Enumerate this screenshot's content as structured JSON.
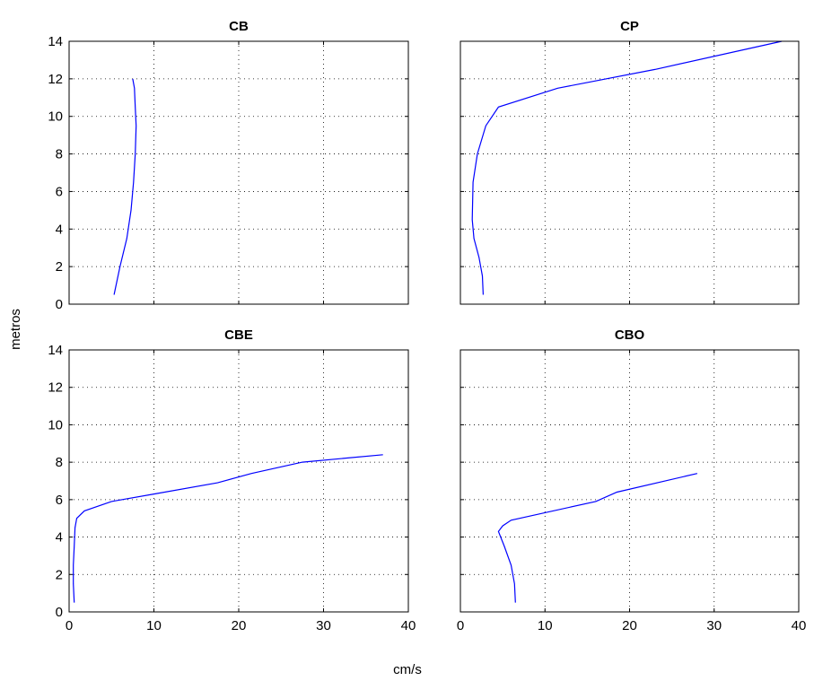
{
  "figure": {
    "xlabel": "cm/s",
    "ylabel": "metros"
  },
  "chart_data": [
    {
      "type": "line",
      "title": "CB",
      "xlim": [
        0,
        40
      ],
      "ylim": [
        0,
        14
      ],
      "xticks": [
        0,
        10,
        20,
        30,
        40
      ],
      "yticks": [
        0,
        2,
        4,
        6,
        8,
        10,
        12,
        14
      ],
      "show_xtick_labels": false,
      "show_ytick_labels": true,
      "grid": true,
      "line_color": "#0000ff",
      "series": [
        {
          "x": [
            5.3,
            6.0,
            6.8,
            7.3,
            7.6,
            7.8,
            7.9,
            7.8,
            7.7,
            7.5
          ],
          "y": [
            0.5,
            2.0,
            3.5,
            5.0,
            6.5,
            8.0,
            9.5,
            10.5,
            11.5,
            12.0
          ]
        }
      ]
    },
    {
      "type": "line",
      "title": "CP",
      "xlim": [
        0,
        40
      ],
      "ylim": [
        0,
        14
      ],
      "xticks": [
        0,
        10,
        20,
        30,
        40
      ],
      "yticks": [
        0,
        2,
        4,
        6,
        8,
        10,
        12,
        14
      ],
      "show_xtick_labels": false,
      "show_ytick_labels": false,
      "grid": true,
      "line_color": "#0000ff",
      "series": [
        {
          "x": [
            2.7,
            2.6,
            2.2,
            1.6,
            1.4,
            1.5,
            2.0,
            3.0,
            4.5,
            11.5,
            23.0,
            38.0
          ],
          "y": [
            0.5,
            1.5,
            2.5,
            3.5,
            4.5,
            6.5,
            8.0,
            9.5,
            10.5,
            11.5,
            12.5,
            14.0
          ]
        }
      ]
    },
    {
      "type": "line",
      "title": "CBE",
      "xlim": [
        0,
        40
      ],
      "ylim": [
        0,
        14
      ],
      "xticks": [
        0,
        10,
        20,
        30,
        40
      ],
      "yticks": [
        0,
        2,
        4,
        6,
        8,
        10,
        12,
        14
      ],
      "show_xtick_labels": true,
      "show_ytick_labels": true,
      "grid": true,
      "line_color": "#0000ff",
      "series": [
        {
          "x": [
            0.6,
            0.5,
            0.5,
            0.6,
            0.7,
            0.9,
            1.8,
            5.0,
            10.0,
            17.5,
            21.5,
            27.5,
            37.0
          ],
          "y": [
            0.5,
            1.5,
            2.5,
            3.5,
            4.5,
            5.0,
            5.4,
            5.9,
            6.3,
            6.9,
            7.4,
            8.0,
            8.4
          ]
        }
      ]
    },
    {
      "type": "line",
      "title": "CBO",
      "xlim": [
        0,
        40
      ],
      "ylim": [
        0,
        14
      ],
      "xticks": [
        0,
        10,
        20,
        30,
        40
      ],
      "yticks": [
        0,
        2,
        4,
        6,
        8,
        10,
        12,
        14
      ],
      "show_xtick_labels": true,
      "show_ytick_labels": false,
      "grid": true,
      "line_color": "#0000ff",
      "series": [
        {
          "x": [
            6.5,
            6.4,
            6.0,
            5.2,
            4.5,
            5.0,
            6.0,
            16.0,
            18.5,
            28.0
          ],
          "y": [
            0.5,
            1.5,
            2.5,
            3.5,
            4.3,
            4.6,
            4.9,
            5.9,
            6.4,
            7.4
          ]
        }
      ]
    }
  ]
}
